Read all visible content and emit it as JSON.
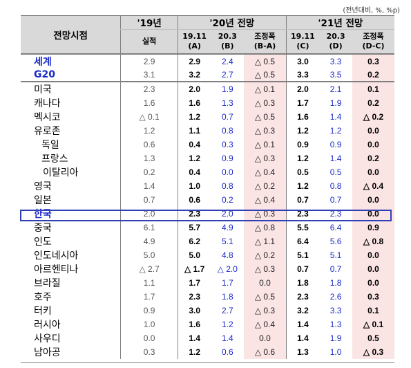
{
  "unit_note": "(전년대비, %, %p)",
  "header": {
    "col_label": "전망시점",
    "year19": "'19년",
    "year20": "'20년 전망",
    "year21": "'21년 전망",
    "actual": "실적",
    "c2": "19.11",
    "c2b": "(A)",
    "c3": "20.3",
    "c3b": "(B)",
    "c4": "조정폭",
    "c4b": "(B-A)",
    "c5": "19.11",
    "c5b": "(C)",
    "c6": "20.3",
    "c6b": "(D)",
    "c7": "조정폭",
    "c7b": "(D-C)"
  },
  "rows": [
    {
      "name": "세계",
      "v19": "2.9",
      "a20": "2.9",
      "b20": "2.4",
      "d20": "△ 0.5",
      "c21": "3.0",
      "d21": "3.3",
      "e21": "0.3"
    },
    {
      "name": "G20",
      "v19": "3.1",
      "a20": "3.2",
      "b20": "2.7",
      "d20": "△ 0.5",
      "c21": "3.3",
      "d21": "3.5",
      "e21": "0.2"
    },
    {
      "name": "미국",
      "v19": "2.3",
      "a20": "2.0",
      "b20": "1.9",
      "d20": "△ 0.1",
      "c21": "2.0",
      "d21": "2.1",
      "e21": "0.1"
    },
    {
      "name": "캐나다",
      "v19": "1.6",
      "a20": "1.6",
      "b20": "1.3",
      "d20": "△ 0.3",
      "c21": "1.7",
      "d21": "1.9",
      "e21": "0.2"
    },
    {
      "name": "멕시코",
      "v19": "△ 0.1",
      "a20": "1.2",
      "b20": "0.7",
      "d20": "△ 0.5",
      "c21": "1.6",
      "d21": "1.4",
      "e21": "△ 0.2"
    },
    {
      "name": "유로존",
      "v19": "1.2",
      "a20": "1.1",
      "b20": "0.8",
      "d20": "△ 0.3",
      "c21": "1.2",
      "d21": "1.2",
      "e21": "0.0"
    },
    {
      "name": "독일",
      "v19": "0.6",
      "a20": "0.4",
      "b20": "0.3",
      "d20": "△ 0.1",
      "c21": "0.9",
      "d21": "0.9",
      "e21": "0.0"
    },
    {
      "name": "프랑스",
      "v19": "1.3",
      "a20": "1.2",
      "b20": "0.9",
      "d20": "△ 0.3",
      "c21": "1.2",
      "d21": "1.4",
      "e21": "0.2"
    },
    {
      "name": "이탈리아",
      "v19": "0.2",
      "a20": "0.4",
      "b20": "0.0",
      "d20": "△ 0.4",
      "c21": "0.5",
      "d21": "0.5",
      "e21": "0.0"
    },
    {
      "name": "영국",
      "v19": "1.4",
      "a20": "1.0",
      "b20": "0.8",
      "d20": "△ 0.2",
      "c21": "1.2",
      "d21": "0.8",
      "e21": "△ 0.4"
    },
    {
      "name": "일본",
      "v19": "0.7",
      "a20": "0.6",
      "b20": "0.2",
      "d20": "△ 0.4",
      "c21": "0.7",
      "d21": "0.7",
      "e21": "0.0"
    },
    {
      "name": "한국",
      "v19": "2.0",
      "a20": "2.3",
      "b20": "2.0",
      "d20": "△ 0.3",
      "c21": "2.3",
      "d21": "2.3",
      "e21": "0.0"
    },
    {
      "name": "중국",
      "v19": "6.1",
      "a20": "5.7",
      "b20": "4.9",
      "d20": "△ 0.8",
      "c21": "5.5",
      "d21": "6.4",
      "e21": "0.9"
    },
    {
      "name": "인도",
      "v19": "4.9",
      "a20": "6.2",
      "b20": "5.1",
      "d20": "△ 1.1",
      "c21": "6.4",
      "d21": "5.6",
      "e21": "△ 0.8"
    },
    {
      "name": "인도네시아",
      "v19": "5.0",
      "a20": "5.0",
      "b20": "4.8",
      "d20": "△ 0.2",
      "c21": "5.1",
      "d21": "5.1",
      "e21": "0.0"
    },
    {
      "name": "아르헨티나",
      "v19": "△ 2.7",
      "a20": "△ 1.7",
      "b20": "△ 2.0",
      "d20": "△ 0.3",
      "c21": "0.7",
      "d21": "0.7",
      "e21": "0.0"
    },
    {
      "name": "브라질",
      "v19": "1.1",
      "a20": "1.7",
      "b20": "1.7",
      "d20": "0.0",
      "c21": "1.8",
      "d21": "1.8",
      "e21": "0.0"
    },
    {
      "name": "호주",
      "v19": "1.7",
      "a20": "2.3",
      "b20": "1.8",
      "d20": "△ 0.5",
      "c21": "2.3",
      "d21": "2.6",
      "e21": "0.3"
    },
    {
      "name": "터키",
      "v19": "0.9",
      "a20": "3.0",
      "b20": "2.7",
      "d20": "△ 0.3",
      "c21": "3.2",
      "d21": "3.3",
      "e21": "0.1"
    },
    {
      "name": "러시아",
      "v19": "1.0",
      "a20": "1.6",
      "b20": "1.2",
      "d20": "△ 0.4",
      "c21": "1.4",
      "d21": "1.3",
      "e21": "△ 0.1"
    },
    {
      "name": "사우디",
      "v19": "0.0",
      "a20": "1.4",
      "b20": "1.4",
      "d20": "0.0",
      "c21": "1.4",
      "d21": "1.9",
      "e21": "0.5"
    },
    {
      "name": "남아공",
      "v19": "0.3",
      "a20": "1.2",
      "b20": "0.6",
      "d20": "△ 0.6",
      "c21": "1.3",
      "d21": "1.0",
      "e21": "△ 0.3"
    }
  ]
}
